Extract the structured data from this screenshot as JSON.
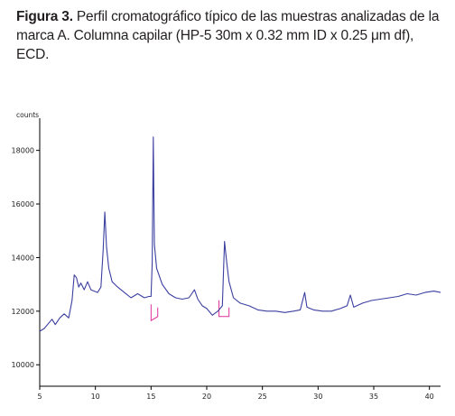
{
  "caption": {
    "label": "Figura 3.",
    "text": " Perfil cromatográfico típico de las muestras analizadas de la marca A. Columna capilar (HP-5 30m x 0.32 mm ID x 0.25 μm df), ECD."
  },
  "colors": {
    "trace": "#3b3fa0",
    "baseline_marks": "#e0309a",
    "axis": "#000000"
  },
  "chart_data": {
    "type": "line",
    "ylabel": "counts",
    "xlim": [
      5,
      41
    ],
    "ylim": [
      9200,
      19200
    ],
    "x_ticks": [
      5,
      10,
      15,
      20,
      25,
      30,
      35,
      40
    ],
    "y_ticks": [
      10000,
      12000,
      14000,
      16000,
      18000
    ],
    "grid": false,
    "series": [
      {
        "values": [
          [
            5.0,
            11250
          ],
          [
            5.4,
            11350
          ],
          [
            5.8,
            11550
          ],
          [
            6.1,
            11700
          ],
          [
            6.4,
            11500
          ],
          [
            6.8,
            11750
          ],
          [
            7.2,
            11900
          ],
          [
            7.6,
            11750
          ],
          [
            7.9,
            12400
          ],
          [
            8.1,
            13350
          ],
          [
            8.3,
            13250
          ],
          [
            8.5,
            12900
          ],
          [
            8.7,
            13050
          ],
          [
            9.0,
            12800
          ],
          [
            9.3,
            13100
          ],
          [
            9.6,
            12800
          ],
          [
            9.9,
            12750
          ],
          [
            10.2,
            12700
          ],
          [
            10.5,
            12900
          ],
          [
            10.7,
            14300
          ],
          [
            10.85,
            15700
          ],
          [
            11.0,
            14400
          ],
          [
            11.2,
            13600
          ],
          [
            11.5,
            13100
          ],
          [
            12.0,
            12900
          ],
          [
            12.6,
            12700
          ],
          [
            13.2,
            12500
          ],
          [
            13.8,
            12650
          ],
          [
            14.4,
            12500
          ],
          [
            14.8,
            12550
          ],
          [
            15.0,
            12550
          ],
          [
            15.1,
            13800
          ],
          [
            15.2,
            18500
          ],
          [
            15.3,
            14500
          ],
          [
            15.5,
            13600
          ],
          [
            16.0,
            13000
          ],
          [
            16.6,
            12650
          ],
          [
            17.2,
            12500
          ],
          [
            17.8,
            12450
          ],
          [
            18.4,
            12500
          ],
          [
            18.9,
            12800
          ],
          [
            19.2,
            12450
          ],
          [
            19.6,
            12200
          ],
          [
            20.0,
            12100
          ],
          [
            20.5,
            11850
          ],
          [
            21.0,
            12000
          ],
          [
            21.4,
            12200
          ],
          [
            21.6,
            14600
          ],
          [
            21.8,
            13800
          ],
          [
            22.0,
            13100
          ],
          [
            22.4,
            12500
          ],
          [
            23.0,
            12300
          ],
          [
            23.8,
            12200
          ],
          [
            24.6,
            12050
          ],
          [
            25.4,
            12000
          ],
          [
            26.2,
            12000
          ],
          [
            27.0,
            11950
          ],
          [
            27.8,
            12000
          ],
          [
            28.4,
            12050
          ],
          [
            28.8,
            12700
          ],
          [
            29.0,
            12150
          ],
          [
            29.6,
            12050
          ],
          [
            30.4,
            12000
          ],
          [
            31.2,
            12000
          ],
          [
            32.0,
            12100
          ],
          [
            32.6,
            12200
          ],
          [
            32.9,
            12600
          ],
          [
            33.2,
            12150
          ],
          [
            34.0,
            12300
          ],
          [
            34.8,
            12400
          ],
          [
            35.6,
            12450
          ],
          [
            36.4,
            12500
          ],
          [
            37.2,
            12550
          ],
          [
            38.0,
            12650
          ],
          [
            38.8,
            12600
          ],
          [
            39.6,
            12700
          ],
          [
            40.4,
            12750
          ],
          [
            41.0,
            12700
          ]
        ]
      }
    ],
    "integration_marks": [
      {
        "x": [
          15.0,
          15.6
        ],
        "y": [
          11650,
          11800
        ]
      },
      {
        "x": [
          21.1,
          22.0
        ],
        "y": [
          11800,
          11800
        ]
      }
    ]
  }
}
